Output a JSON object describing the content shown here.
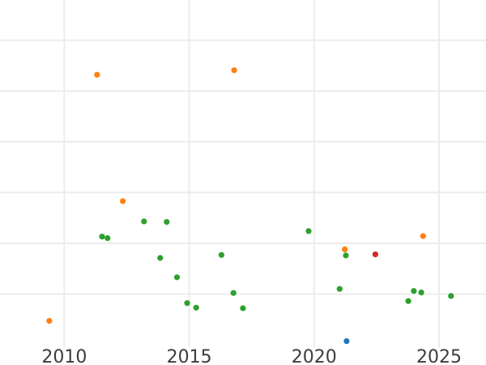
{
  "chart_data": {
    "type": "scatter",
    "title": "",
    "subtitle": "",
    "xlabel": "",
    "ylabel": "",
    "legend": false,
    "grid": true,
    "background_color": "#ffffff",
    "gridline_color": "#ececec",
    "tick_label_color": "#3d3d3d",
    "xlim": [
      2007.4,
      2026.9
    ],
    "ylim": [
      0,
      6.8
    ],
    "x_ticks": [
      2010,
      2015,
      2020,
      2025
    ],
    "x_tick_labels": [
      "2010",
      "2015",
      "2020",
      "2025"
    ],
    "y_gridline_values": [
      1,
      2,
      3,
      4,
      5,
      6
    ],
    "y_tick_labels_visible": false,
    "y_unit_note": "y axis has no visible labels; values estimated in gridline units (0 = bottom edge, 1 per gridline)",
    "marker_diameter_px": 7.2,
    "series": [
      {
        "name": "blue",
        "color": "#1f77b4",
        "points": [
          [
            2021.3,
            0.07
          ]
        ]
      },
      {
        "name": "orange",
        "color": "#ff7f0e",
        "points": [
          [
            2009.4,
            0.47
          ],
          [
            2011.31,
            5.32
          ],
          [
            2012.34,
            2.83
          ],
          [
            2016.8,
            5.41
          ],
          [
            2021.23,
            1.88
          ],
          [
            2024.36,
            2.14
          ]
        ]
      },
      {
        "name": "green",
        "color": "#2ca02c",
        "points": [
          [
            2011.51,
            2.13
          ],
          [
            2011.73,
            2.1
          ],
          [
            2013.19,
            2.43
          ],
          [
            2013.84,
            1.71
          ],
          [
            2014.1,
            2.42
          ],
          [
            2014.51,
            1.33
          ],
          [
            2014.92,
            0.82
          ],
          [
            2015.28,
            0.73
          ],
          [
            2016.29,
            1.77
          ],
          [
            2016.77,
            1.02
          ],
          [
            2017.15,
            0.72
          ],
          [
            2019.78,
            2.24
          ],
          [
            2021.02,
            1.1
          ],
          [
            2021.27,
            1.76
          ],
          [
            2023.77,
            0.86
          ],
          [
            2023.99,
            1.06
          ],
          [
            2024.29,
            1.03
          ],
          [
            2025.48,
            0.96
          ]
        ]
      },
      {
        "name": "red",
        "color": "#d62728",
        "points": [
          [
            2022.45,
            1.78
          ]
        ]
      }
    ]
  }
}
